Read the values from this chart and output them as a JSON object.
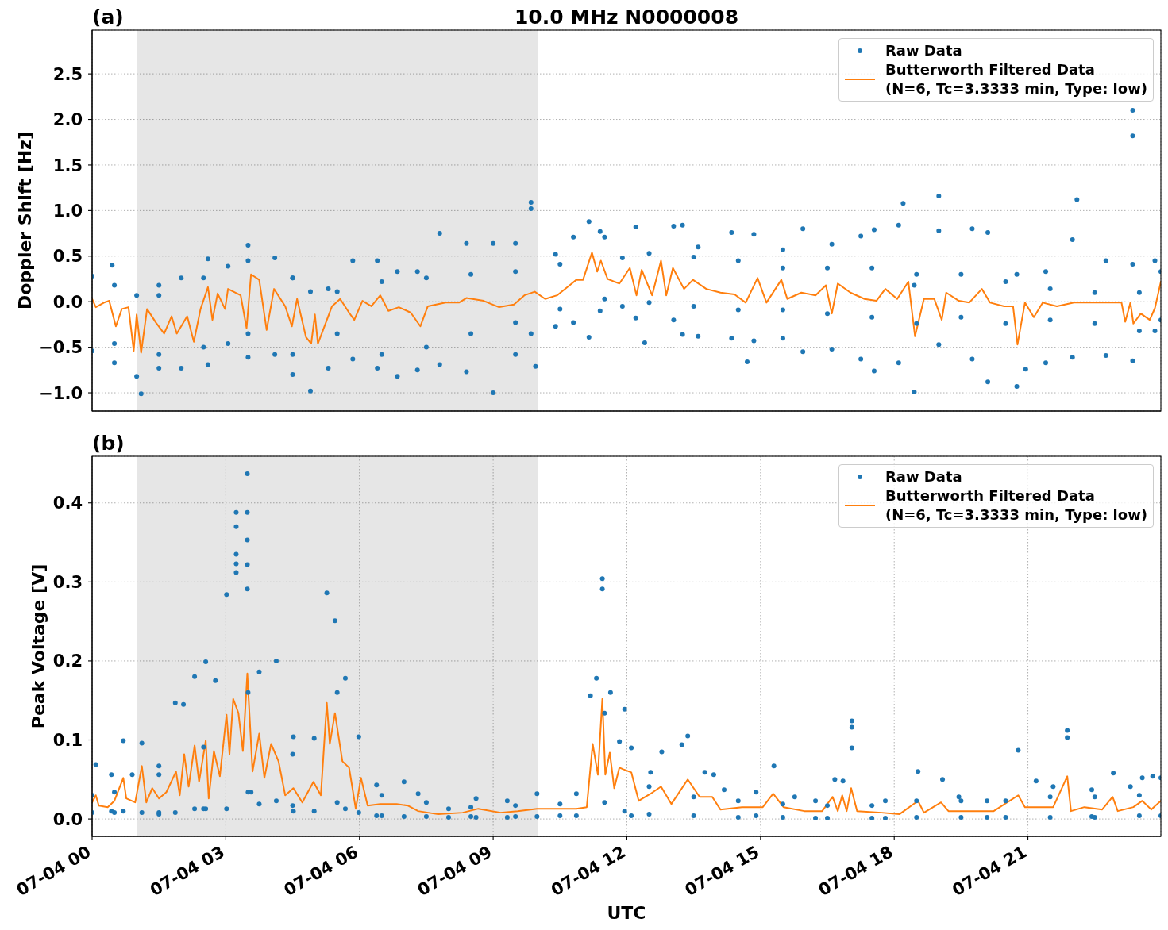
{
  "chart_data": [
    {
      "type": "scatter",
      "title": "10.0 MHz N0000008",
      "annotations": [
        "(a)"
      ],
      "ylabel": "Doppler Shift [Hz]",
      "xlim": [
        "--07-04T00:00",
        "--07-04T23:59"
      ],
      "xticks": [
        {
          "value": "--07-04T00:00",
          "label": null
        },
        {
          "value": "--07-04T03:00",
          "label": null
        },
        {
          "value": "--07-04T06:00",
          "label": null
        },
        {
          "value": "--07-04T09:00",
          "label": null
        },
        {
          "value": "--07-04T12:00",
          "label": null
        },
        {
          "value": "--07-04T15:00",
          "label": null
        },
        {
          "value": "--07-04T18:00",
          "label": null
        },
        {
          "value": "--07-04T21:00",
          "label": null
        }
      ],
      "ylim": [
        -1.2,
        2.98
      ],
      "yticks": [
        {
          "value": -1,
          "label": "−1.0"
        },
        {
          "value": -0.5,
          "label": "−0.5"
        },
        {
          "value": 0,
          "label": "0.0"
        },
        0.5,
        {
          "value": 1,
          "label": "1.0"
        },
        1.5,
        {
          "value": 2,
          "label": "2.0"
        },
        2.5
      ],
      "tick_labels": "y",
      "grid": true,
      "legend": "top right",
      "bands": [
        {
          "axis": "x",
          "from": "--07-04T01:00",
          "to": "--07-04T10:00",
          "color": "#e6e6e6"
        }
      ],
      "series": [
        {
          "name": "Raw Data",
          "marker": "circle",
          "color": "#1f77b4",
          "x": [
            "--07-04T00:00",
            "--07-04T00:00",
            "--07-04T00:27",
            "--07-04T00:30",
            "--07-04T01:00",
            "--07-04T01:00",
            "--07-04T01:06",
            "--07-04T01:30",
            "--07-04T01:30",
            "--07-04T02:00",
            "--07-04T02:00",
            "--07-04T02:36",
            "--07-04T02:36",
            "--07-04T03:03",
            "--07-04T03:03",
            "--07-04T03:30",
            "--07-04T03:30",
            "--07-04T04:06",
            "--07-04T04:06",
            "--07-04T04:30",
            "--07-04T04:30",
            "--07-04T04:54",
            "--07-04T04:54",
            "--07-04T05:18",
            "--07-04T05:18",
            "--07-04T05:51",
            "--07-04T05:51",
            "--07-04T06:24",
            "--07-04T06:24",
            "--07-04T06:51",
            "--07-04T06:51",
            "--07-04T07:18",
            "--07-04T07:18",
            "--07-04T07:48",
            "--07-04T07:48",
            "--07-04T08:24",
            "--07-04T08:24",
            "--07-04T09:00",
            "--07-04T09:00",
            "--07-04T09:30",
            "--07-04T09:30",
            "--07-04T09:51",
            "--07-04T09:51",
            "--07-04T09:51",
            "--07-04T09:57",
            "--07-04T10:24",
            "--07-04T10:24",
            "--07-04T10:48",
            "--07-04T10:48",
            "--07-04T11:09",
            "--07-04T11:09",
            "--07-04T11:24",
            "--07-04T11:24",
            "--07-04T11:54",
            "--07-04T11:54",
            "--07-04T12:12",
            "--07-04T12:12",
            "--07-04T12:24",
            "--07-04T13:03",
            "--07-04T13:03",
            "--07-04T13:15",
            "--07-04T13:15",
            "--07-04T13:36",
            "--07-04T13:36",
            "--07-04T14:21",
            "--07-04T14:21",
            "--07-04T14:42",
            "--07-04T14:51",
            "--07-04T14:51",
            "--07-04T15:30",
            "--07-04T15:30",
            "--07-04T15:57",
            "--07-04T15:57",
            "--07-04T16:36",
            "--07-04T16:36",
            "--07-04T17:15",
            "--07-04T17:15",
            "--07-04T17:33",
            "--07-04T17:33",
            "--07-04T18:06",
            "--07-04T18:06",
            "--07-04T18:12",
            "--07-04T18:27",
            "--07-04T18:27",
            "--07-04T19:00",
            "--07-04T19:00",
            "--07-04T19:00",
            "--07-04T19:45",
            "--07-04T19:45",
            "--07-04T20:06",
            "--07-04T20:06",
            "--07-04T20:45",
            "--07-04T20:45",
            "--07-04T20:57",
            "--07-04T21:24",
            "--07-04T21:24",
            "--07-04T22:00",
            "--07-04T22:00",
            "--07-04T22:06",
            "--07-04T22:45",
            "--07-04T22:45",
            "--07-04T23:21",
            "--07-04T23:21",
            "--07-04T23:21",
            "--07-04T23:21",
            "--07-04T23:51",
            "--07-04T23:51",
            "--07-04T23:59",
            "--07-04T23:59",
            "--07-04T00:30",
            "--07-04T00:30",
            "--07-04T01:30",
            "--07-04T01:30",
            "--07-04T02:30",
            "--07-04T02:30",
            "--07-04T03:30",
            "--07-04T03:30",
            "--07-04T04:30",
            "--07-04T04:30",
            "--07-04T05:30",
            "--07-04T05:30",
            "--07-04T06:30",
            "--07-04T06:30",
            "--07-04T07:30",
            "--07-04T07:30",
            "--07-04T08:30",
            "--07-04T08:30",
            "--07-04T09:30",
            "--07-04T09:30",
            "--07-04T10:30",
            "--07-04T10:30",
            "--07-04T11:30",
            "--07-04T11:30",
            "--07-04T12:30",
            "--07-04T12:30",
            "--07-04T13:30",
            "--07-04T13:30",
            "--07-04T14:30",
            "--07-04T14:30",
            "--07-04T15:30",
            "--07-04T15:30",
            "--07-04T16:30",
            "--07-04T16:30",
            "--07-04T17:30",
            "--07-04T17:30",
            "--07-04T18:30",
            "--07-04T18:30",
            "--07-04T19:30",
            "--07-04T19:30",
            "--07-04T20:30",
            "--07-04T20:30",
            "--07-04T21:30",
            "--07-04T21:30",
            "--07-04T22:30",
            "--07-04T22:30",
            "--07-04T23:30",
            "--07-04T23:30"
          ],
          "values": [
            0.28,
            -0.54,
            0.4,
            -0.67,
            0.07,
            -0.82,
            -1.01,
            0.18,
            -0.73,
            0.26,
            -0.73,
            0.47,
            -0.69,
            0.39,
            -0.46,
            0.62,
            -0.61,
            0.48,
            -0.58,
            0.26,
            -0.8,
            0.11,
            -0.98,
            0.14,
            -0.73,
            0.45,
            -0.63,
            0.45,
            -0.73,
            0.33,
            -0.82,
            0.33,
            -0.75,
            0.75,
            -0.69,
            0.64,
            -0.77,
            0.64,
            -1.0,
            0.64,
            -0.58,
            1.09,
            1.02,
            -0.35,
            -0.71,
            0.52,
            -0.27,
            0.71,
            -0.23,
            0.88,
            -0.39,
            0.77,
            -0.1,
            0.48,
            -0.05,
            0.82,
            -0.18,
            -0.45,
            0.83,
            -0.2,
            0.84,
            -0.36,
            0.6,
            -0.38,
            0.76,
            -0.4,
            -0.66,
            0.74,
            -0.43,
            0.57,
            -0.4,
            0.8,
            -0.55,
            0.63,
            -0.52,
            0.72,
            -0.63,
            0.79,
            -0.76,
            0.84,
            -0.67,
            1.08,
            0.18,
            -0.99,
            1.16,
            0.78,
            -0.47,
            0.8,
            -0.63,
            0.76,
            -0.88,
            0.3,
            -0.93,
            -0.74,
            0.33,
            -0.67,
            0.68,
            -0.61,
            1.12,
            0.45,
            -0.59,
            2.1,
            1.82,
            0.41,
            -0.65,
            0.45,
            -0.32,
            0.33,
            -0.2,
            0.18,
            -0.46,
            0.07,
            -0.58,
            0.26,
            -0.5,
            0.45,
            -0.35,
            0.26,
            -0.58,
            0.11,
            -0.35,
            0.22,
            -0.58,
            0.26,
            -0.5,
            0.3,
            -0.35,
            0.33,
            -0.23,
            0.41,
            -0.08,
            0.71,
            0.03,
            0.53,
            -0.01,
            0.49,
            -0.05,
            0.45,
            -0.09,
            0.37,
            -0.09,
            0.37,
            -0.13,
            0.37,
            -0.17,
            0.3,
            -0.24,
            0.3,
            -0.17,
            0.22,
            -0.24,
            0.14,
            -0.2,
            0.1,
            -0.24,
            0.1,
            -0.32
          ]
        },
        {
          "name": "Butterworth Filtered Data\n(N=6, Tc=3.3333 min, Type: low)",
          "type": "line",
          "color": "#ff7f0e",
          "x": [
            "--07-04T00:00",
            "--07-04T00:05",
            "--07-04T00:16",
            "--07-04T00:23",
            "--07-04T00:32",
            "--07-04T00:40",
            "--07-04T00:49",
            "--07-04T00:56",
            "--07-04T01:00",
            "--07-04T01:06",
            "--07-04T01:14",
            "--07-04T01:26",
            "--07-04T01:37",
            "--07-04T01:47",
            "--07-04T01:54",
            "--07-04T02:08",
            "--07-04T02:17",
            "--07-04T02:26",
            "--07-04T02:36",
            "--07-04T02:42",
            "--07-04T02:49",
            "--07-04T02:59",
            "--07-04T03:03",
            "--07-04T03:20",
            "--07-04T03:28",
            "--07-04T03:34",
            "--07-04T03:45",
            "--07-04T03:55",
            "--07-04T04:05",
            "--07-04T04:20",
            "--07-04T04:29",
            "--07-04T04:36",
            "--07-04T04:48",
            "--07-04T04:55",
            "--07-04T05:00",
            "--07-04T05:04",
            "--07-04T05:11",
            "--07-04T05:23",
            "--07-04T05:34",
            "--07-04T05:46",
            "--07-04T05:53",
            "--07-04T06:04",
            "--07-04T06:16",
            "--07-04T06:28",
            "--07-04T06:39",
            "--07-04T06:53",
            "--07-04T07:09",
            "--07-04T07:22",
            "--07-04T07:32",
            "--07-04T07:56",
            "--07-04T08:14",
            "--07-04T08:24",
            "--07-04T08:47",
            "--07-04T09:08",
            "--07-04T09:28",
            "--07-04T09:42",
            "--07-04T09:56",
            "--07-04T10:10",
            "--07-04T10:26",
            "--07-04T10:43",
            "--07-04T10:52",
            "--07-04T11:01",
            "--07-04T11:13",
            "--07-04T11:20",
            "--07-04T11:25",
            "--07-04T11:34",
            "--07-04T11:43",
            "--07-04T11:50",
            "--07-04T12:04",
            "--07-04T12:13",
            "--07-04T12:20",
            "--07-04T12:34",
            "--07-04T12:46",
            "--07-04T12:53",
            "--07-04T13:02",
            "--07-04T13:17",
            "--07-04T13:29",
            "--07-04T13:47",
            "--07-04T14:06",
            "--07-04T14:25",
            "--07-04T14:40",
            "--07-04T14:56",
            "--07-04T15:08",
            "--07-04T15:28",
            "--07-04T15:36",
            "--07-04T15:55",
            "--07-04T16:14",
            "--07-04T16:28",
            "--07-04T16:36",
            "--07-04T16:44",
            "--07-04T17:01",
            "--07-04T17:20",
            "--07-04T17:36",
            "--07-04T17:48",
            "--07-04T18:04",
            "--07-04T18:19",
            "--07-04T18:28",
            "--07-04T18:40",
            "--07-04T18:54",
            "--07-04T19:04",
            "--07-04T19:10",
            "--07-04T19:27",
            "--07-04T19:41",
            "--07-04T19:58",
            "--07-04T20:09",
            "--07-04T20:28",
            "--07-04T20:40",
            "--07-04T20:46",
            "--07-04T20:56",
            "--07-04T21:08",
            "--07-04T21:20",
            "--07-04T21:39",
            "--07-04T22:02",
            "--07-04T22:26",
            "--07-04T22:49",
            "--07-04T23:06",
            "--07-04T23:11",
            "--07-04T23:18",
            "--07-04T23:22",
            "--07-04T23:32",
            "--07-04T23:44",
            "--07-04T23:51",
            "--07-04T23:59"
          ],
          "values": [
            0.03,
            -0.06,
            -0.01,
            0.01,
            -0.27,
            -0.08,
            -0.06,
            -0.54,
            -0.14,
            -0.56,
            -0.08,
            -0.23,
            -0.35,
            -0.16,
            -0.35,
            -0.16,
            -0.44,
            -0.08,
            0.16,
            -0.2,
            0.09,
            -0.08,
            0.14,
            0.07,
            -0.29,
            0.3,
            0.24,
            -0.31,
            0.14,
            -0.05,
            -0.27,
            0.03,
            -0.39,
            -0.46,
            -0.14,
            -0.46,
            -0.31,
            -0.05,
            0.03,
            -0.12,
            -0.2,
            0.01,
            -0.05,
            0.07,
            -0.1,
            -0.06,
            -0.12,
            -0.27,
            -0.05,
            -0.01,
            -0.01,
            0.04,
            0.01,
            -0.06,
            -0.03,
            0.07,
            0.11,
            0.03,
            0.07,
            0.18,
            0.24,
            0.24,
            0.54,
            0.33,
            0.45,
            0.25,
            0.22,
            0.2,
            0.37,
            0.07,
            0.35,
            0.07,
            0.45,
            0.07,
            0.37,
            0.14,
            0.24,
            0.14,
            0.1,
            0.08,
            -0.01,
            0.26,
            -0.01,
            0.24,
            0.03,
            0.1,
            0.07,
            0.18,
            -0.13,
            0.2,
            0.1,
            0.03,
            0.01,
            0.14,
            0.03,
            0.22,
            -0.38,
            0.03,
            0.03,
            -0.2,
            0.1,
            0.01,
            -0.01,
            0.14,
            -0.01,
            -0.05,
            -0.05,
            -0.47,
            -0.01,
            -0.17,
            -0.01,
            -0.05,
            -0.01,
            -0.01,
            -0.01,
            -0.01,
            -0.22,
            -0.01,
            -0.24,
            -0.13,
            -0.2,
            -0.07,
            0.22
          ]
        }
      ]
    },
    {
      "type": "scatter",
      "annotations": [
        "(b)"
      ],
      "xlabel": "UTC",
      "ylabel": "Peak Voltage [V]",
      "xlim": [
        "--07-04T00:00",
        "--07-04T23:59"
      ],
      "xticks": [
        {
          "value": "--07-04T00:00",
          "label": "07-04 00"
        },
        {
          "value": "--07-04T03:00",
          "label": "07-04 03"
        },
        {
          "value": "--07-04T06:00",
          "label": "07-04 06"
        },
        {
          "value": "--07-04T09:00",
          "label": "07-04 09"
        },
        {
          "value": "--07-04T12:00",
          "label": "07-04 12"
        },
        {
          "value": "--07-04T15:00",
          "label": "07-04 15"
        },
        {
          "value": "--07-04T18:00",
          "label": "07-04 18"
        },
        {
          "value": "--07-04T21:00",
          "label": "07-04 21"
        }
      ],
      "ylim": [
        -0.022,
        0.459
      ],
      "yticks": [
        {
          "value": 0,
          "label": "0.0"
        },
        0.1,
        0.2,
        0.3,
        0.4
      ],
      "grid": true,
      "legend": "top right",
      "bands": [
        {
          "axis": "x",
          "from": "--07-04T01:00",
          "to": "--07-04T10:00",
          "color": "#e6e6e6"
        }
      ],
      "series": [
        {
          "name": "Raw Data",
          "marker": "circle",
          "color": "#1f77b4",
          "x": [
            "--07-04T00:00",
            "--07-04T00:00",
            "--07-04T00:05",
            "--07-04T00:26",
            "--07-04T00:26",
            "--07-04T00:42",
            "--07-04T00:42",
            "--07-04T00:54",
            "--07-04T01:07",
            "--07-04T01:07",
            "--07-04T01:30",
            "--07-04T01:30",
            "--07-04T01:52",
            "--07-04T01:52",
            "--07-04T02:03",
            "--07-04T02:18",
            "--07-04T02:18",
            "--07-04T02:33",
            "--07-04T02:33",
            "--07-04T02:46",
            "--07-04T03:01",
            "--07-04T03:01",
            "--07-04T03:14",
            "--07-04T03:14",
            "--07-04T03:14",
            "--07-04T03:14",
            "--07-04T03:14",
            "--07-04T03:29",
            "--07-04T03:29",
            "--07-04T03:29",
            "--07-04T03:29",
            "--07-04T03:29",
            "--07-04T03:34",
            "--07-04T03:45",
            "--07-04T03:45",
            "--07-04T04:08",
            "--07-04T04:08",
            "--07-04T04:31",
            "--07-04T04:31",
            "--07-04T04:59",
            "--07-04T04:59",
            "--07-04T05:16",
            "--07-04T05:27",
            "--07-04T05:41",
            "--07-04T05:41",
            "--07-04T05:59",
            "--07-04T05:59",
            "--07-04T06:23",
            "--07-04T06:23",
            "--07-04T07:00",
            "--07-04T07:00",
            "--07-04T07:19",
            "--07-04T08:00",
            "--07-04T08:00",
            "--07-04T08:37",
            "--07-04T08:37",
            "--07-04T09:19",
            "--07-04T09:19",
            "--07-04T09:59",
            "--07-04T09:59",
            "--07-04T10:52",
            "--07-04T10:52",
            "--07-04T11:11",
            "--07-04T11:19",
            "--07-04T11:27",
            "--07-04T11:27",
            "--07-04T11:38",
            "--07-04T11:50",
            "--07-04T11:57",
            "--07-04T11:57",
            "--07-04T12:06",
            "--07-04T12:06",
            "--07-04T12:32",
            "--07-04T12:47",
            "--07-04T13:14",
            "--07-04T13:22",
            "--07-04T13:45",
            "--07-04T13:57",
            "--07-04T14:11",
            "--07-04T14:54",
            "--07-04T14:54",
            "--07-04T15:18",
            "--07-04T15:46",
            "--07-04T16:14",
            "--07-04T16:14",
            "--07-04T16:40",
            "--07-04T16:51",
            "--07-04T17:03",
            "--07-04T17:03",
            "--07-04T17:03",
            "--07-04T17:48",
            "--07-04T17:48",
            "--07-04T18:32",
            "--07-04T19:05",
            "--07-04T19:27",
            "--07-04T20:05",
            "--07-04T20:05",
            "--07-04T20:47",
            "--07-04T21:11",
            "--07-04T21:34",
            "--07-04T21:53",
            "--07-04T21:53",
            "--07-04T22:26",
            "--07-04T22:26",
            "--07-04T22:55",
            "--07-04T23:18",
            "--07-04T23:34",
            "--07-04T23:48",
            "--07-04T23:59",
            "--07-04T23:59",
            "--07-04T00:30",
            "--07-04T00:30",
            "--07-04T01:30",
            "--07-04T01:30",
            "--07-04T02:30",
            "--07-04T02:30",
            "--07-04T03:30",
            "--07-04T03:30",
            "--07-04T04:30",
            "--07-04T04:30",
            "--07-04T05:30",
            "--07-04T05:30",
            "--07-04T06:30",
            "--07-04T06:30",
            "--07-04T07:30",
            "--07-04T07:30",
            "--07-04T08:30",
            "--07-04T08:30",
            "--07-04T09:30",
            "--07-04T09:30",
            "--07-04T10:30",
            "--07-04T10:30",
            "--07-04T11:30",
            "--07-04T11:30",
            "--07-04T12:30",
            "--07-04T12:30",
            "--07-04T13:30",
            "--07-04T13:30",
            "--07-04T14:30",
            "--07-04T14:30",
            "--07-04T15:30",
            "--07-04T15:30",
            "--07-04T16:30",
            "--07-04T16:30",
            "--07-04T17:30",
            "--07-04T17:30",
            "--07-04T18:30",
            "--07-04T18:30",
            "--07-04T19:30",
            "--07-04T19:30",
            "--07-04T20:30",
            "--07-04T20:30",
            "--07-04T21:30",
            "--07-04T21:30",
            "--07-04T22:30",
            "--07-04T22:30",
            "--07-04T23:30",
            "--07-04T23:30"
          ],
          "values": [
            0.03,
            0.008,
            0.069,
            0.056,
            0.01,
            0.099,
            0.01,
            0.056,
            0.096,
            0.008,
            0.067,
            0.006,
            0.147,
            0.008,
            0.145,
            0.18,
            0.013,
            0.199,
            0.013,
            0.175,
            0.284,
            0.013,
            0.388,
            0.37,
            0.335,
            0.323,
            0.312,
            0.437,
            0.388,
            0.353,
            0.322,
            0.291,
            0.034,
            0.186,
            0.019,
            0.2,
            0.023,
            0.104,
            0.01,
            0.102,
            0.01,
            0.286,
            0.251,
            0.178,
            0.013,
            0.104,
            0.008,
            0.043,
            0.004,
            0.047,
            0.003,
            0.032,
            0.013,
            0.002,
            0.026,
            0.002,
            0.023,
            0.002,
            0.032,
            0.003,
            0.032,
            0.004,
            0.156,
            0.178,
            0.304,
            0.291,
            0.16,
            0.098,
            0.139,
            0.01,
            0.09,
            0.004,
            0.059,
            0.085,
            0.094,
            0.105,
            0.059,
            0.056,
            0.037,
            0.034,
            0.004,
            0.067,
            0.028,
            0.023,
            0.001,
            0.05,
            0.048,
            0.124,
            0.116,
            0.09,
            0.023,
            0.001,
            0.06,
            0.05,
            0.028,
            0.023,
            0.002,
            0.087,
            0.048,
            0.041,
            0.112,
            0.103,
            0.037,
            0.003,
            0.058,
            0.041,
            0.052,
            0.054,
            0.052,
            0.004,
            0.034,
            0.008,
            0.056,
            0.008,
            0.091,
            0.013,
            0.16,
            0.034,
            0.082,
            0.017,
            0.16,
            0.021,
            0.03,
            0.004,
            0.021,
            0.003,
            0.015,
            0.003,
            0.017,
            0.003,
            0.019,
            0.004,
            0.134,
            0.021,
            0.041,
            0.006,
            0.028,
            0.004,
            0.023,
            0.002,
            0.019,
            0.002,
            0.017,
            0.001,
            0.017,
            0.001,
            0.023,
            0.002,
            0.023,
            0.002,
            0.023,
            0.002,
            0.028,
            0.002,
            0.028,
            0.002,
            0.03,
            0.004
          ]
        },
        {
          "name": "Butterworth Filtered Data\n(N=6, Tc=3.3333 min, Type: low)",
          "type": "line",
          "color": "#ff7f0e",
          "x": [
            "--07-04T00:00",
            "--07-04T00:05",
            "--07-04T00:09",
            "--07-04T00:21",
            "--07-04T00:30",
            "--07-04T00:42",
            "--07-04T00:46",
            "--07-04T00:58",
            "--07-04T01:07",
            "--07-04T01:13",
            "--07-04T01:21",
            "--07-04T01:30",
            "--07-04T01:40",
            "--07-04T01:53",
            "--07-04T01:58",
            "--07-04T02:04",
            "--07-04T02:10",
            "--07-04T02:18",
            "--07-04T02:24",
            "--07-04T02:33",
            "--07-04T02:37",
            "--07-04T02:44",
            "--07-04T02:52",
            "--07-04T03:01",
            "--07-04T03:05",
            "--07-04T03:10",
            "--07-04T03:17",
            "--07-04T03:23",
            "--07-04T03:29",
            "--07-04T03:36",
            "--07-04T03:45",
            "--07-04T03:52",
            "--07-04T04:01",
            "--07-04T04:11",
            "--07-04T04:20",
            "--07-04T04:31",
            "--07-04T04:43",
            "--07-04T04:58",
            "--07-04T05:08",
            "--07-04T05:16",
            "--07-04T05:20",
            "--07-04T05:27",
            "--07-04T05:37",
            "--07-04T05:46",
            "--07-04T05:55",
            "--07-04T06:02",
            "--07-04T06:11",
            "--07-04T06:28",
            "--07-04T06:50",
            "--07-04T07:05",
            "--07-04T07:19",
            "--07-04T07:46",
            "--07-04T08:19",
            "--07-04T08:40",
            "--07-04T09:10",
            "--07-04T09:33",
            "--07-04T09:59",
            "--07-04T10:24",
            "--07-04T10:52",
            "--07-04T11:06",
            "--07-04T11:14",
            "--07-04T11:21",
            "--07-04T11:27",
            "--07-04T11:31",
            "--07-04T11:37",
            "--07-04T11:43",
            "--07-04T11:50",
            "--07-04T11:55",
            "--07-04T12:06",
            "--07-04T12:16",
            "--07-04T12:32",
            "--07-04T12:46",
            "--07-04T13:00",
            "--07-04T13:22",
            "--07-04T13:38",
            "--07-04T13:55",
            "--07-04T14:06",
            "--07-04T14:35",
            "--07-04T15:03",
            "--07-04T15:17",
            "--07-04T15:31",
            "--07-04T15:59",
            "--07-04T16:23",
            "--07-04T16:37",
            "--07-04T16:44",
            "--07-04T16:50",
            "--07-04T16:56",
            "--07-04T17:02",
            "--07-04T17:10",
            "--07-04T17:43",
            "--07-04T18:07",
            "--07-04T18:32",
            "--07-04T18:40",
            "--07-04T19:03",
            "--07-04T19:13",
            "--07-04T19:41",
            "--07-04T20:14",
            "--07-04T20:47",
            "--07-04T20:56",
            "--07-04T21:34",
            "--07-04T21:53",
            "--07-04T21:58",
            "--07-04T22:16",
            "--07-04T22:40",
            "--07-04T22:54",
            "--07-04T23:01",
            "--07-04T23:22",
            "--07-04T23:34",
            "--07-04T23:46",
            "--07-04T23:59"
          ],
          "values": [
            0.021,
            0.03,
            0.017,
            0.015,
            0.023,
            0.052,
            0.026,
            0.021,
            0.067,
            0.021,
            0.039,
            0.026,
            0.034,
            0.06,
            0.03,
            0.082,
            0.041,
            0.093,
            0.047,
            0.099,
            0.026,
            0.086,
            0.054,
            0.132,
            0.082,
            0.152,
            0.134,
            0.086,
            0.184,
            0.06,
            0.108,
            0.052,
            0.095,
            0.073,
            0.03,
            0.039,
            0.021,
            0.047,
            0.03,
            0.147,
            0.095,
            0.134,
            0.073,
            0.065,
            0.013,
            0.052,
            0.017,
            0.019,
            0.019,
            0.017,
            0.01,
            0.006,
            0.008,
            0.013,
            0.008,
            0.01,
            0.013,
            0.013,
            0.013,
            0.015,
            0.095,
            0.056,
            0.152,
            0.056,
            0.084,
            0.039,
            0.065,
            0.063,
            0.059,
            0.023,
            0.032,
            0.041,
            0.019,
            0.05,
            0.028,
            0.028,
            0.012,
            0.015,
            0.015,
            0.032,
            0.015,
            0.01,
            0.01,
            0.028,
            0.01,
            0.03,
            0.01,
            0.039,
            0.01,
            0.008,
            0.006,
            0.023,
            0.008,
            0.021,
            0.01,
            0.01,
            0.01,
            0.03,
            0.015,
            0.015,
            0.054,
            0.01,
            0.015,
            0.012,
            0.028,
            0.01,
            0.015,
            0.023,
            0.012,
            0.023
          ]
        }
      ]
    }
  ]
}
